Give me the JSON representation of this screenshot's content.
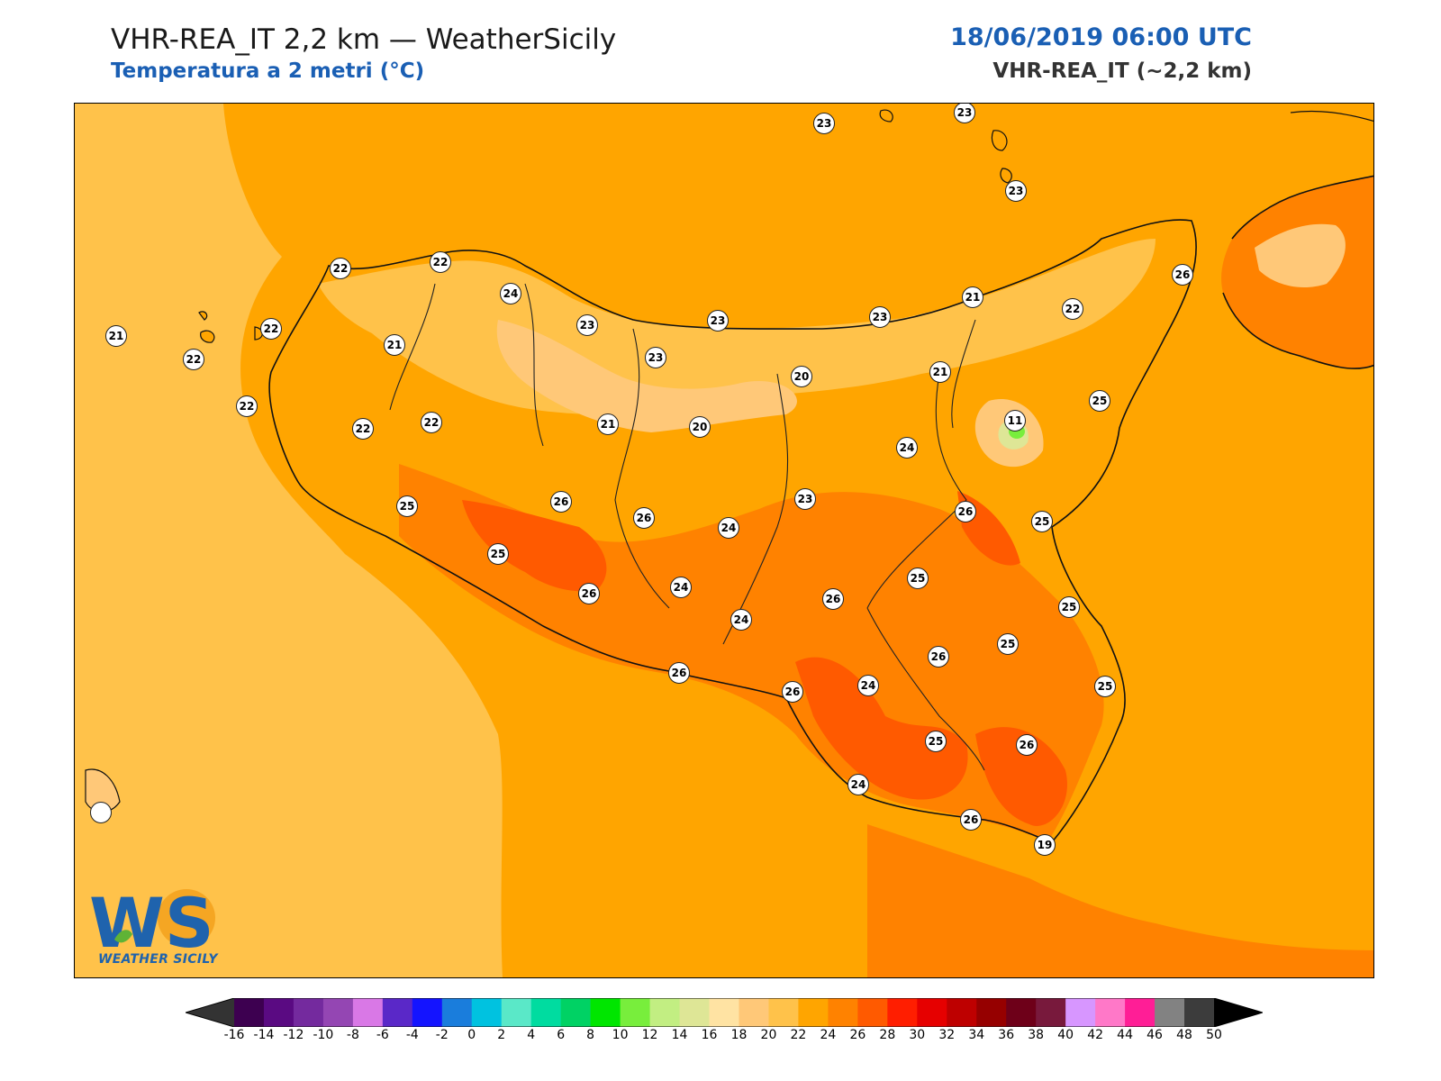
{
  "header": {
    "title": "VHR-REA_IT 2,2 km — WeatherSicily",
    "subtitle": "Temperatura a 2 metri (°C)",
    "datetime": "18/06/2019 06:00 UTC",
    "model": "VHR-REA_IT (~2,2 km)"
  },
  "logo": {
    "mark": "WS",
    "text": "WEATHER SICILY",
    "colors": [
      "#1f63ad",
      "#f5a623",
      "#5fb336"
    ]
  },
  "stations": [
    {
      "id": "s1",
      "value": "23",
      "lon_lat_hint": "ustica"
    },
    {
      "id": "s2",
      "value": "23"
    },
    {
      "id": "s3",
      "value": "23"
    },
    {
      "id": "s4",
      "value": "22"
    },
    {
      "id": "s5",
      "value": "22"
    },
    {
      "id": "s6",
      "value": "24"
    },
    {
      "id": "s7",
      "value": "21"
    },
    {
      "id": "s8",
      "value": "22"
    },
    {
      "id": "s9",
      "value": "23"
    },
    {
      "id": "s10",
      "value": "23"
    },
    {
      "id": "s11",
      "value": "23"
    },
    {
      "id": "s12",
      "value": "21"
    },
    {
      "id": "s13",
      "value": "22"
    },
    {
      "id": "s14",
      "value": "26"
    },
    {
      "id": "s15",
      "value": "22"
    },
    {
      "id": "s16",
      "value": "21"
    },
    {
      "id": "s17",
      "value": "23"
    },
    {
      "id": "s18",
      "value": "20"
    },
    {
      "id": "s19",
      "value": "21"
    },
    {
      "id": "s20",
      "value": "22"
    },
    {
      "id": "s21",
      "value": "25"
    },
    {
      "id": "s22",
      "value": "22"
    },
    {
      "id": "s23",
      "value": "22"
    },
    {
      "id": "s24",
      "value": "21"
    },
    {
      "id": "s25",
      "value": "20"
    },
    {
      "id": "s26",
      "value": "11"
    },
    {
      "id": "s27",
      "value": "24"
    },
    {
      "id": "s28",
      "value": "23"
    },
    {
      "id": "s29",
      "value": "25"
    },
    {
      "id": "s30",
      "value": "26"
    },
    {
      "id": "s31",
      "value": "26"
    },
    {
      "id": "s32",
      "value": "26"
    },
    {
      "id": "s33",
      "value": "24"
    },
    {
      "id": "s34",
      "value": "25"
    },
    {
      "id": "s35",
      "value": "25"
    },
    {
      "id": "s36",
      "value": "25"
    },
    {
      "id": "s37",
      "value": "26"
    },
    {
      "id": "s38",
      "value": "24"
    },
    {
      "id": "s39",
      "value": "26"
    },
    {
      "id": "s40",
      "value": "24"
    },
    {
      "id": "s41",
      "value": "25"
    },
    {
      "id": "s42",
      "value": "25"
    },
    {
      "id": "s43",
      "value": "26"
    },
    {
      "id": "s44",
      "value": "26"
    },
    {
      "id": "s45",
      "value": "24"
    },
    {
      "id": "s46",
      "value": "26"
    },
    {
      "id": "s47",
      "value": "25"
    },
    {
      "id": "s48",
      "value": "25"
    },
    {
      "id": "s49",
      "value": "26"
    },
    {
      "id": "s50",
      "value": "24"
    },
    {
      "id": "s51",
      "value": "26"
    },
    {
      "id": "s52",
      "value": "19"
    }
  ],
  "colorbar": {
    "ticks": [
      "-16",
      "-14",
      "-12",
      "-10",
      "-8",
      "-6",
      "-4",
      "-2",
      "0",
      "2",
      "4",
      "6",
      "8",
      "10",
      "12",
      "14",
      "16",
      "18",
      "20",
      "22",
      "24",
      "26",
      "28",
      "30",
      "32",
      "34",
      "36",
      "38",
      "40",
      "42",
      "44",
      "46",
      "48",
      "50"
    ],
    "colors": [
      "#3d0050",
      "#5a0a82",
      "#742a9e",
      "#9446b3",
      "#d978e6",
      "#5a28c8",
      "#1414ff",
      "#1a7ddc",
      "#00c2e0",
      "#5ae8c8",
      "#00dca0",
      "#00d264",
      "#00e600",
      "#78ee3c",
      "#c2ee82",
      "#dee696",
      "#ffe3a3",
      "#ffc878",
      "#ffc24a",
      "#ffa500",
      "#ff8200",
      "#ff5a00",
      "#ff1e00",
      "#e60000",
      "#be0000",
      "#960000",
      "#6e0019",
      "#78193c",
      "#d796ff",
      "#ff78c8",
      "#ff1e96",
      "#828282",
      "#3c3c3c"
    ],
    "under_color": "#333333",
    "over_color": "#000000"
  }
}
